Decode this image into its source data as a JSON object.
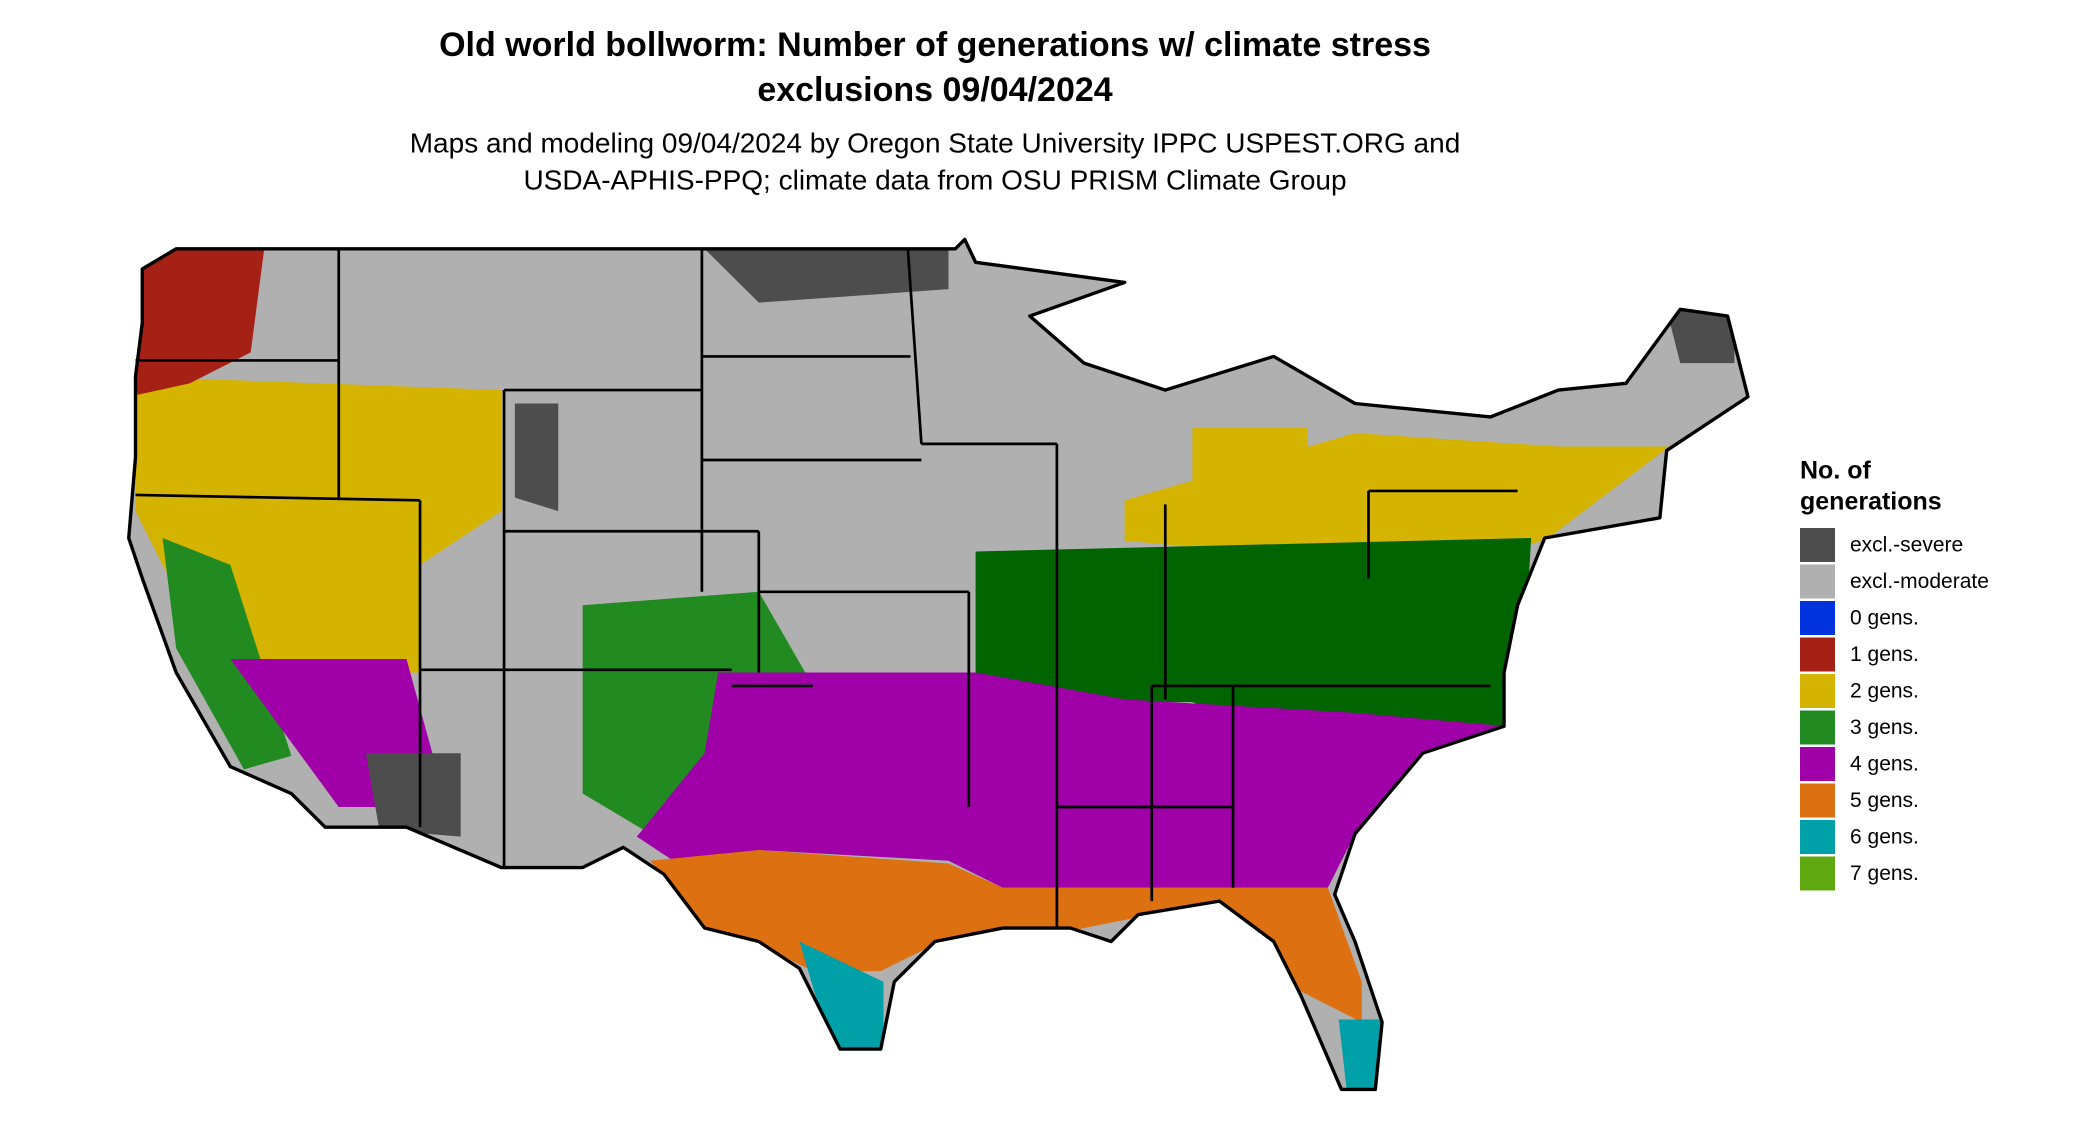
{
  "title_lines": [
    "Old world bollworm: Number of generations w/ climate stress",
    "exclusions 09/04/2024"
  ],
  "subtitle_lines": [
    "Maps and modeling 09/04/2024 by Oregon State University IPPC USPEST.ORG and",
    "USDA-APHIS-PPQ; climate data from OSU PRISM Climate Group"
  ],
  "legend": {
    "title_lines": [
      "No. of",
      "generations"
    ],
    "items": [
      {
        "label": "excl.-severe",
        "color": "#4d4d4d"
      },
      {
        "label": "excl.-moderate",
        "color": "#b0b0b0"
      },
      {
        "label": "0 gens.",
        "color": "#0033dd"
      },
      {
        "label": "1 gens.",
        "color": "#a52015"
      },
      {
        "label": "2 gens.",
        "color": "#d4b400"
      },
      {
        "label": "3 gens.",
        "color": "#218a21"
      },
      {
        "label": "4 gens.",
        "color": "#a000a8"
      },
      {
        "label": "5 gens.",
        "color": "#dd7010"
      },
      {
        "label": "6 gens.",
        "color": "#00a0a8"
      },
      {
        "label": "7 gens.",
        "color": "#60a810"
      }
    ]
  }
}
